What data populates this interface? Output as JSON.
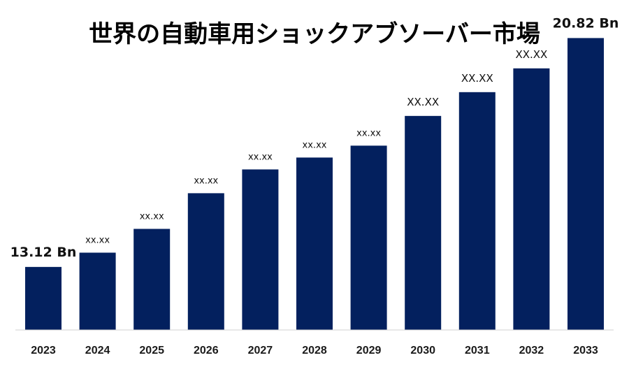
{
  "chart_data": {
    "type": "bar",
    "title": "世界の自動車用ショックアブソーバー市場",
    "categories": [
      "2023",
      "2024",
      "2025",
      "2026",
      "2027",
      "2028",
      "2029",
      "2030",
      "2031",
      "2032",
      "2033"
    ],
    "values": [
      13.12,
      13.6,
      14.4,
      15.6,
      16.4,
      16.8,
      17.2,
      18.2,
      19.0,
      19.8,
      20.82
    ],
    "data_labels": [
      "13.12 Bn",
      "xx.xx",
      "xx.xx",
      "xx.xx",
      "xx.xx",
      "xx.xx",
      "xx.xx",
      "XX.XX",
      "XX.XX",
      "XX.XX",
      "20.82 Bn"
    ],
    "xlabel": "",
    "ylabel": "",
    "ylim": [
      11.0,
      22.1
    ],
    "grid": false,
    "legend": "none",
    "bar_color": "#03205e"
  }
}
